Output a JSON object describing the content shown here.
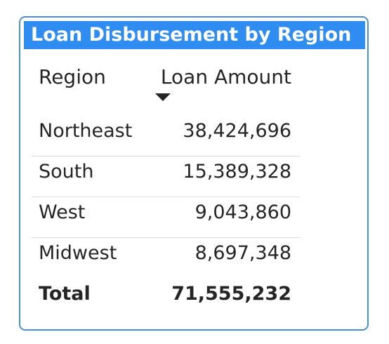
{
  "visual": {
    "title": "Loan Disbursement by Region",
    "accent_color": "#2f8cf0",
    "border_color": "#4a90d9"
  },
  "table": {
    "columns": [
      "Region",
      "Loan Amount"
    ],
    "sort": {
      "column": "Loan Amount",
      "direction": "descending",
      "icon": "sort-descending-icon"
    },
    "rows": [
      {
        "region": "Northeast",
        "amount": "38,424,696"
      },
      {
        "region": "South",
        "amount": "15,389,328"
      },
      {
        "region": "West",
        "amount": "9,043,860"
      },
      {
        "region": "Midwest",
        "amount": "8,697,348"
      }
    ],
    "total": {
      "label": "Total",
      "amount": "71,555,232"
    }
  }
}
